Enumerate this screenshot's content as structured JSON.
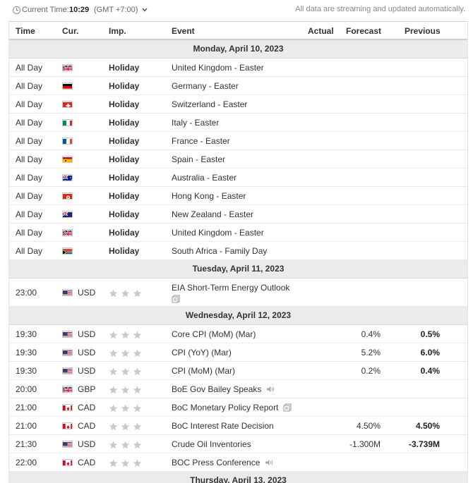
{
  "topbar": {
    "current_time_label": "Current Time:",
    "current_time_value": "10:29",
    "timezone": "(GMT +7:00)",
    "auto_update_note": "All data are streaming and updated automatically."
  },
  "columns": {
    "time": "Time",
    "currency": "Cur.",
    "importance": "Imp.",
    "event": "Event",
    "actual": "Actual",
    "forecast": "Forecast",
    "previous": "Previous"
  },
  "colors": {
    "star_inactive": "#c9c9c9",
    "day_header_bg": "#ebebeb"
  },
  "days": [
    {
      "date": "Monday, April 10, 2023",
      "events": [
        {
          "time": "All Day",
          "flag": "gb",
          "currency": "",
          "importance": "Holiday",
          "event": "United Kingdom - Easter"
        },
        {
          "time": "All Day",
          "flag": "de",
          "currency": "",
          "importance": "Holiday",
          "event": "Germany - Easter"
        },
        {
          "time": "All Day",
          "flag": "ch",
          "currency": "",
          "importance": "Holiday",
          "event": "Switzerland - Easter"
        },
        {
          "time": "All Day",
          "flag": "it",
          "currency": "",
          "importance": "Holiday",
          "event": "Italy - Easter"
        },
        {
          "time": "All Day",
          "flag": "fr",
          "currency": "",
          "importance": "Holiday",
          "event": "France - Easter"
        },
        {
          "time": "All Day",
          "flag": "es",
          "currency": "",
          "importance": "Holiday",
          "event": "Spain - Easter"
        },
        {
          "time": "All Day",
          "flag": "au",
          "currency": "",
          "importance": "Holiday",
          "event": "Australia - Easter"
        },
        {
          "time": "All Day",
          "flag": "hk",
          "currency": "",
          "importance": "Holiday",
          "event": "Hong Kong - Easter"
        },
        {
          "time": "All Day",
          "flag": "nz",
          "currency": "",
          "importance": "Holiday",
          "event": "New Zealand - Easter"
        },
        {
          "time": "All Day",
          "flag": "gb",
          "currency": "",
          "importance": "Holiday",
          "event": "United Kingdom - Easter"
        },
        {
          "time": "All Day",
          "flag": "za",
          "currency": "",
          "importance": "Holiday",
          "event": "South Africa - Family Day"
        }
      ]
    },
    {
      "date": "Tuesday, April 11, 2023",
      "events": [
        {
          "time": "23:00",
          "flag": "us",
          "currency": "USD",
          "importance_stars": 3,
          "event": "EIA Short-Term Energy Outlook",
          "icon": "document-icon"
        }
      ]
    },
    {
      "date": "Wednesday, April 12, 2023",
      "events": [
        {
          "time": "19:30",
          "flag": "us",
          "currency": "USD",
          "importance_stars": 3,
          "event": "Core CPI (MoM) (Mar)",
          "forecast": "0.4%",
          "previous": "0.5%"
        },
        {
          "time": "19:30",
          "flag": "us",
          "currency": "USD",
          "importance_stars": 3,
          "event": "CPI (YoY) (Mar)",
          "forecast": "5.2%",
          "previous": "6.0%"
        },
        {
          "time": "19:30",
          "flag": "us",
          "currency": "USD",
          "importance_stars": 3,
          "event": "CPI (MoM) (Mar)",
          "forecast": "0.2%",
          "previous": "0.4%"
        },
        {
          "time": "20:00",
          "flag": "gb",
          "currency": "GBP",
          "importance_stars": 3,
          "event": "BoE Gov Bailey Speaks",
          "icon": "speaker-icon"
        },
        {
          "time": "21:00",
          "flag": "ca",
          "currency": "CAD",
          "importance_stars": 3,
          "event": "BoC Monetary Policy Report",
          "icon": "document-icon"
        },
        {
          "time": "21:00",
          "flag": "ca",
          "currency": "CAD",
          "importance_stars": 3,
          "event": "BoC Interest Rate Decision",
          "forecast": "4.50%",
          "previous": "4.50%"
        },
        {
          "time": "21:30",
          "flag": "us",
          "currency": "USD",
          "importance_stars": 3,
          "event": "Crude Oil Inventories",
          "forecast": "-1.300M",
          "previous": "-3.739M"
        },
        {
          "time": "22:00",
          "flag": "ca",
          "currency": "CAD",
          "importance_stars": 3,
          "event": "BOC Press Conference",
          "icon": "speaker-icon"
        }
      ]
    },
    {
      "date": "Thursday, April 13, 2023",
      "events": []
    }
  ]
}
